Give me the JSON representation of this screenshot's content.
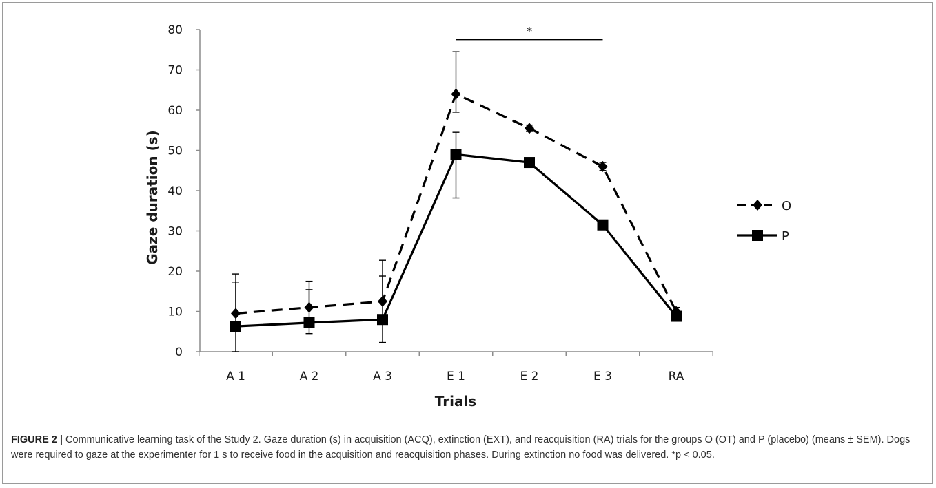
{
  "figure": {
    "label": "FIGURE 2 |",
    "caption": "Communicative learning task of the Study 2. Gaze duration (s) in acquisition (ACQ), extinction (EXT), and reacquisition (RA) trials for the groups O (OT) and P (placebo) (means ± SEM). Dogs were required to gaze at the experimenter for 1 s to receive food in the acquisition and reacquisition phases. During extinction no food was delivered. *p < 0.05."
  },
  "chart_data": {
    "type": "line",
    "title": "",
    "xlabel": "Trials",
    "ylabel": "Gaze duration (s)",
    "categories": [
      "A 1",
      "A 2",
      "A 3",
      "E 1",
      "E 2",
      "E 3",
      "RA"
    ],
    "ylim": [
      0,
      80
    ],
    "yticks": [
      0,
      10,
      20,
      30,
      40,
      50,
      60,
      70,
      80
    ],
    "grid": false,
    "legend_position": "right",
    "series": [
      {
        "name": "O",
        "marker": "diamond",
        "line_style": "dashed",
        "color": "#000000",
        "values": [
          9.5,
          11,
          12.5,
          64,
          55.5,
          46,
          10
        ],
        "error_up": [
          9.8,
          6.5,
          10.2,
          10.5,
          0.8,
          1.0,
          1.0
        ],
        "error_down": [
          0,
          0,
          0,
          4.5,
          0.8,
          1.0,
          1.0
        ]
      },
      {
        "name": "P",
        "marker": "square",
        "line_style": "solid",
        "color": "#000000",
        "values": [
          6.3,
          7.2,
          8.0,
          49,
          47,
          31.5,
          8.8
        ],
        "error_up": [
          11,
          8.2,
          10.8,
          5.5,
          0.5,
          0.5,
          0.5
        ],
        "error_down": [
          6.3,
          2.7,
          5.7,
          10.8,
          0.5,
          0.5,
          0.5
        ]
      }
    ],
    "annotations": [
      {
        "text": "*",
        "from_category": "E 1",
        "to_category": "E 3",
        "y": 77.5
      }
    ]
  }
}
